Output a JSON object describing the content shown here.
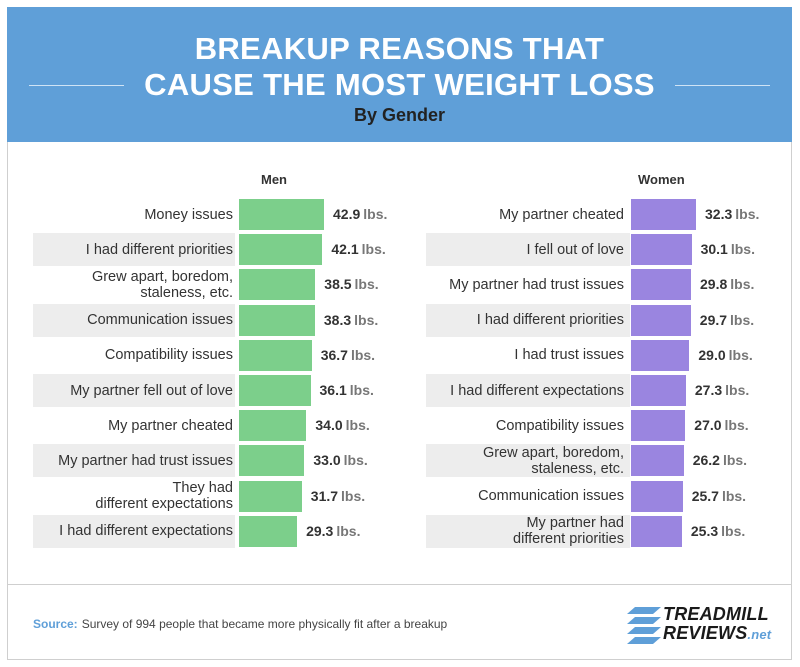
{
  "header": {
    "title_line1": "BREAKUP REASONS THAT",
    "title_line2": "CAUSE THE MOST WEIGHT LOSS",
    "subtitle": "By Gender"
  },
  "unit": "lbs.",
  "colors": {
    "header": "#5f9fd8",
    "men_bar": "#7ccf8b",
    "women_bar": "#9a85e0",
    "row_stripe": "#ededed"
  },
  "chart_data": [
    {
      "type": "bar",
      "orientation": "horizontal",
      "title": "Men",
      "categories": [
        "Money issues",
        "I had different priorities",
        "Grew apart, boredom, staleness, etc.",
        "Communication issues",
        "Compatibility issues",
        "My partner fell out of love",
        "My partner cheated",
        "My partner had trust issues",
        "They had different expectations",
        "I had different expectations"
      ],
      "labels": [
        [
          "Money issues"
        ],
        [
          "I had different priorities"
        ],
        [
          "Grew apart, boredom,",
          "staleness, etc."
        ],
        [
          "Communication issues"
        ],
        [
          "Compatibility issues"
        ],
        [
          "My partner fell out of love"
        ],
        [
          "My partner cheated"
        ],
        [
          "My partner had trust issues"
        ],
        [
          "They had",
          "different expectations"
        ],
        [
          "I had different expectations"
        ]
      ],
      "values": [
        42.9,
        42.1,
        38.5,
        38.3,
        36.7,
        36.1,
        34.0,
        33.0,
        31.7,
        29.3
      ],
      "value_labels": [
        "42.9",
        "42.1",
        "38.5",
        "38.3",
        "36.7",
        "36.1",
        "34.0",
        "33.0",
        "31.7",
        "29.3"
      ],
      "xlim": [
        0,
        42.9
      ]
    },
    {
      "type": "bar",
      "orientation": "horizontal",
      "title": "Women",
      "categories": [
        "My partner cheated",
        "I fell out of love",
        "My partner had trust issues",
        "I had different priorities",
        "I had trust issues",
        "I had different expectations",
        "Compatibility issues",
        "Grew apart, boredom, staleness, etc.",
        "Communication issues",
        "My partner had different priorities"
      ],
      "labels": [
        [
          "My partner cheated"
        ],
        [
          "I fell out of love"
        ],
        [
          "My partner had trust issues"
        ],
        [
          "I had different priorities"
        ],
        [
          "I had trust issues"
        ],
        [
          "I had different expectations"
        ],
        [
          "Compatibility issues"
        ],
        [
          "Grew apart, boredom,",
          "staleness, etc."
        ],
        [
          "Communication issues"
        ],
        [
          "My partner had",
          "different priorities"
        ]
      ],
      "values": [
        32.3,
        30.1,
        29.8,
        29.7,
        29.0,
        27.3,
        27.0,
        26.2,
        25.7,
        25.3
      ],
      "value_labels": [
        "32.3",
        "30.1",
        "29.8",
        "29.7",
        "29.0",
        "27.3",
        "27.0",
        "26.2",
        "25.7",
        "25.3"
      ],
      "xlim": [
        0,
        42.9
      ]
    }
  ],
  "footer": {
    "source_label": "Source:",
    "source_text": "Survey of 994 people that became more physically fit after a breakup",
    "logo_line1": "TREADMILL",
    "logo_line2": "REVIEWS",
    "logo_suffix": ".net"
  }
}
